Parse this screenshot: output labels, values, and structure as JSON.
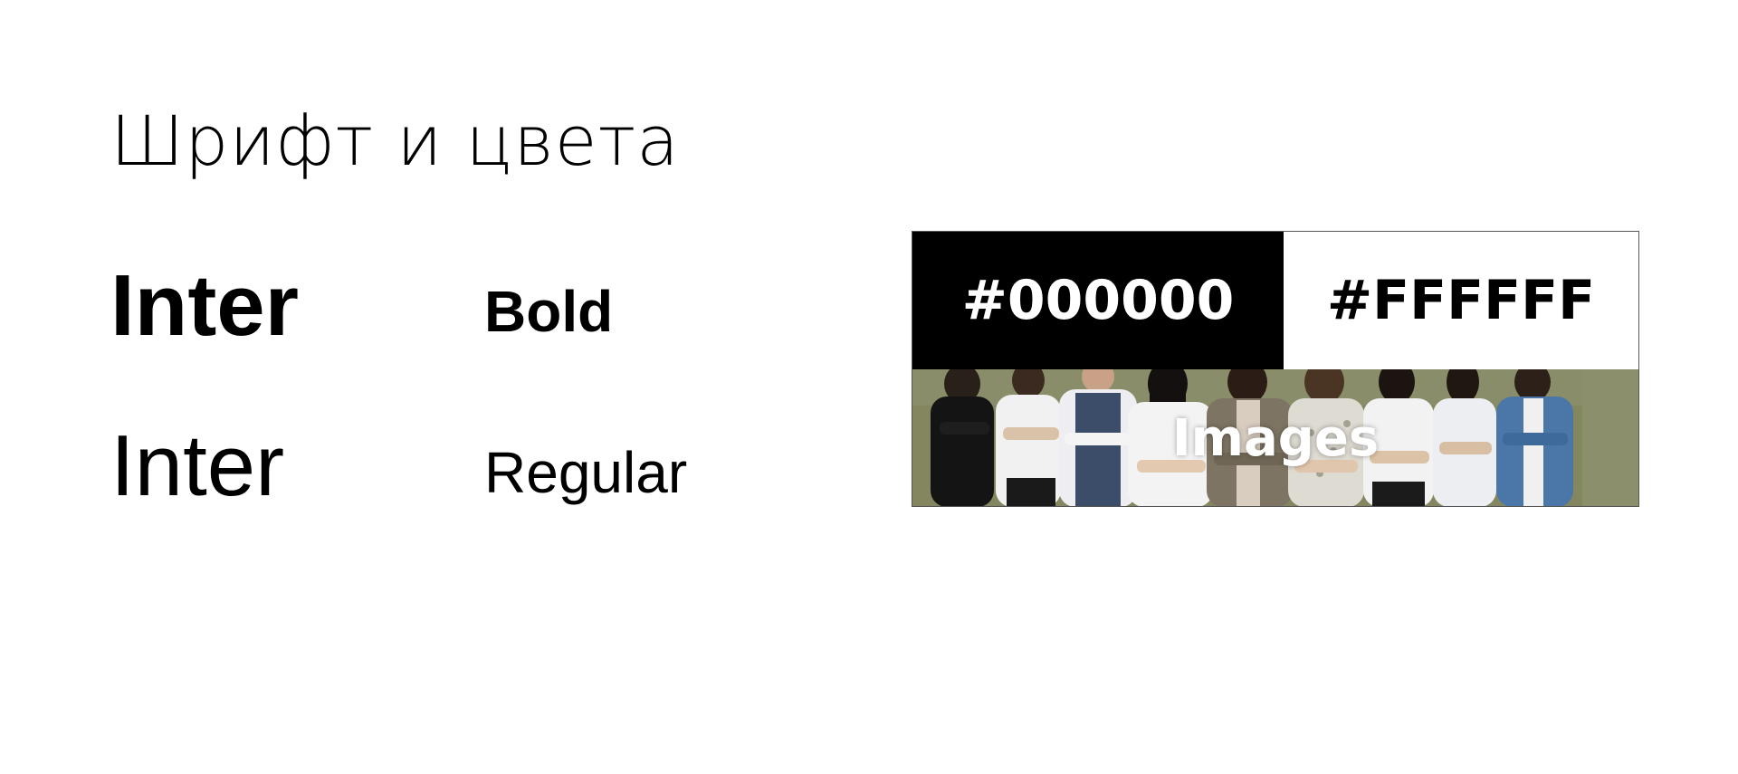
{
  "title": "Шрифт и цвета",
  "fonts": [
    {
      "name": "Inter",
      "weight": "Bold"
    },
    {
      "name": "Inter",
      "weight": "Regular"
    }
  ],
  "colors": [
    {
      "hex_label": "#000000",
      "value": "#000000"
    },
    {
      "hex_label": "#FFFFFF",
      "value": "#FFFFFF"
    }
  ],
  "images_label": "Images"
}
